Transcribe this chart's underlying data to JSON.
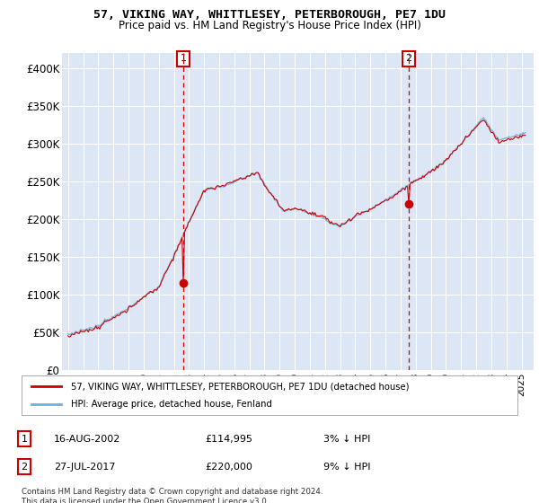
{
  "title": "57, VIKING WAY, WHITTLESEY, PETERBOROUGH, PE7 1DU",
  "subtitle": "Price paid vs. HM Land Registry's House Price Index (HPI)",
  "legend_line1": "57, VIKING WAY, WHITTLESEY, PETERBOROUGH, PE7 1DU (detached house)",
  "legend_line2": "HPI: Average price, detached house, Fenland",
  "footnote": "Contains HM Land Registry data © Crown copyright and database right 2024.\nThis data is licensed under the Open Government Licence v3.0.",
  "transaction1_date": "16-AUG-2002",
  "transaction1_price": 114995,
  "transaction1_label": "3% ↓ HPI",
  "transaction2_date": "27-JUL-2017",
  "transaction2_price": 220000,
  "transaction2_label": "9% ↓ HPI",
  "hpi_color": "#7aadd4",
  "price_color": "#cc0000",
  "bg_color": "#dce6f5",
  "grid_color": "#ffffff",
  "ylim": [
    0,
    420000
  ],
  "yticks": [
    0,
    50000,
    100000,
    150000,
    200000,
    250000,
    300000,
    350000,
    400000
  ],
  "ytick_labels": [
    "£0",
    "£50K",
    "£100K",
    "£150K",
    "£200K",
    "£250K",
    "£300K",
    "£350K",
    "£400K"
  ],
  "xlim_start": 1994.6,
  "xlim_end": 2025.8
}
